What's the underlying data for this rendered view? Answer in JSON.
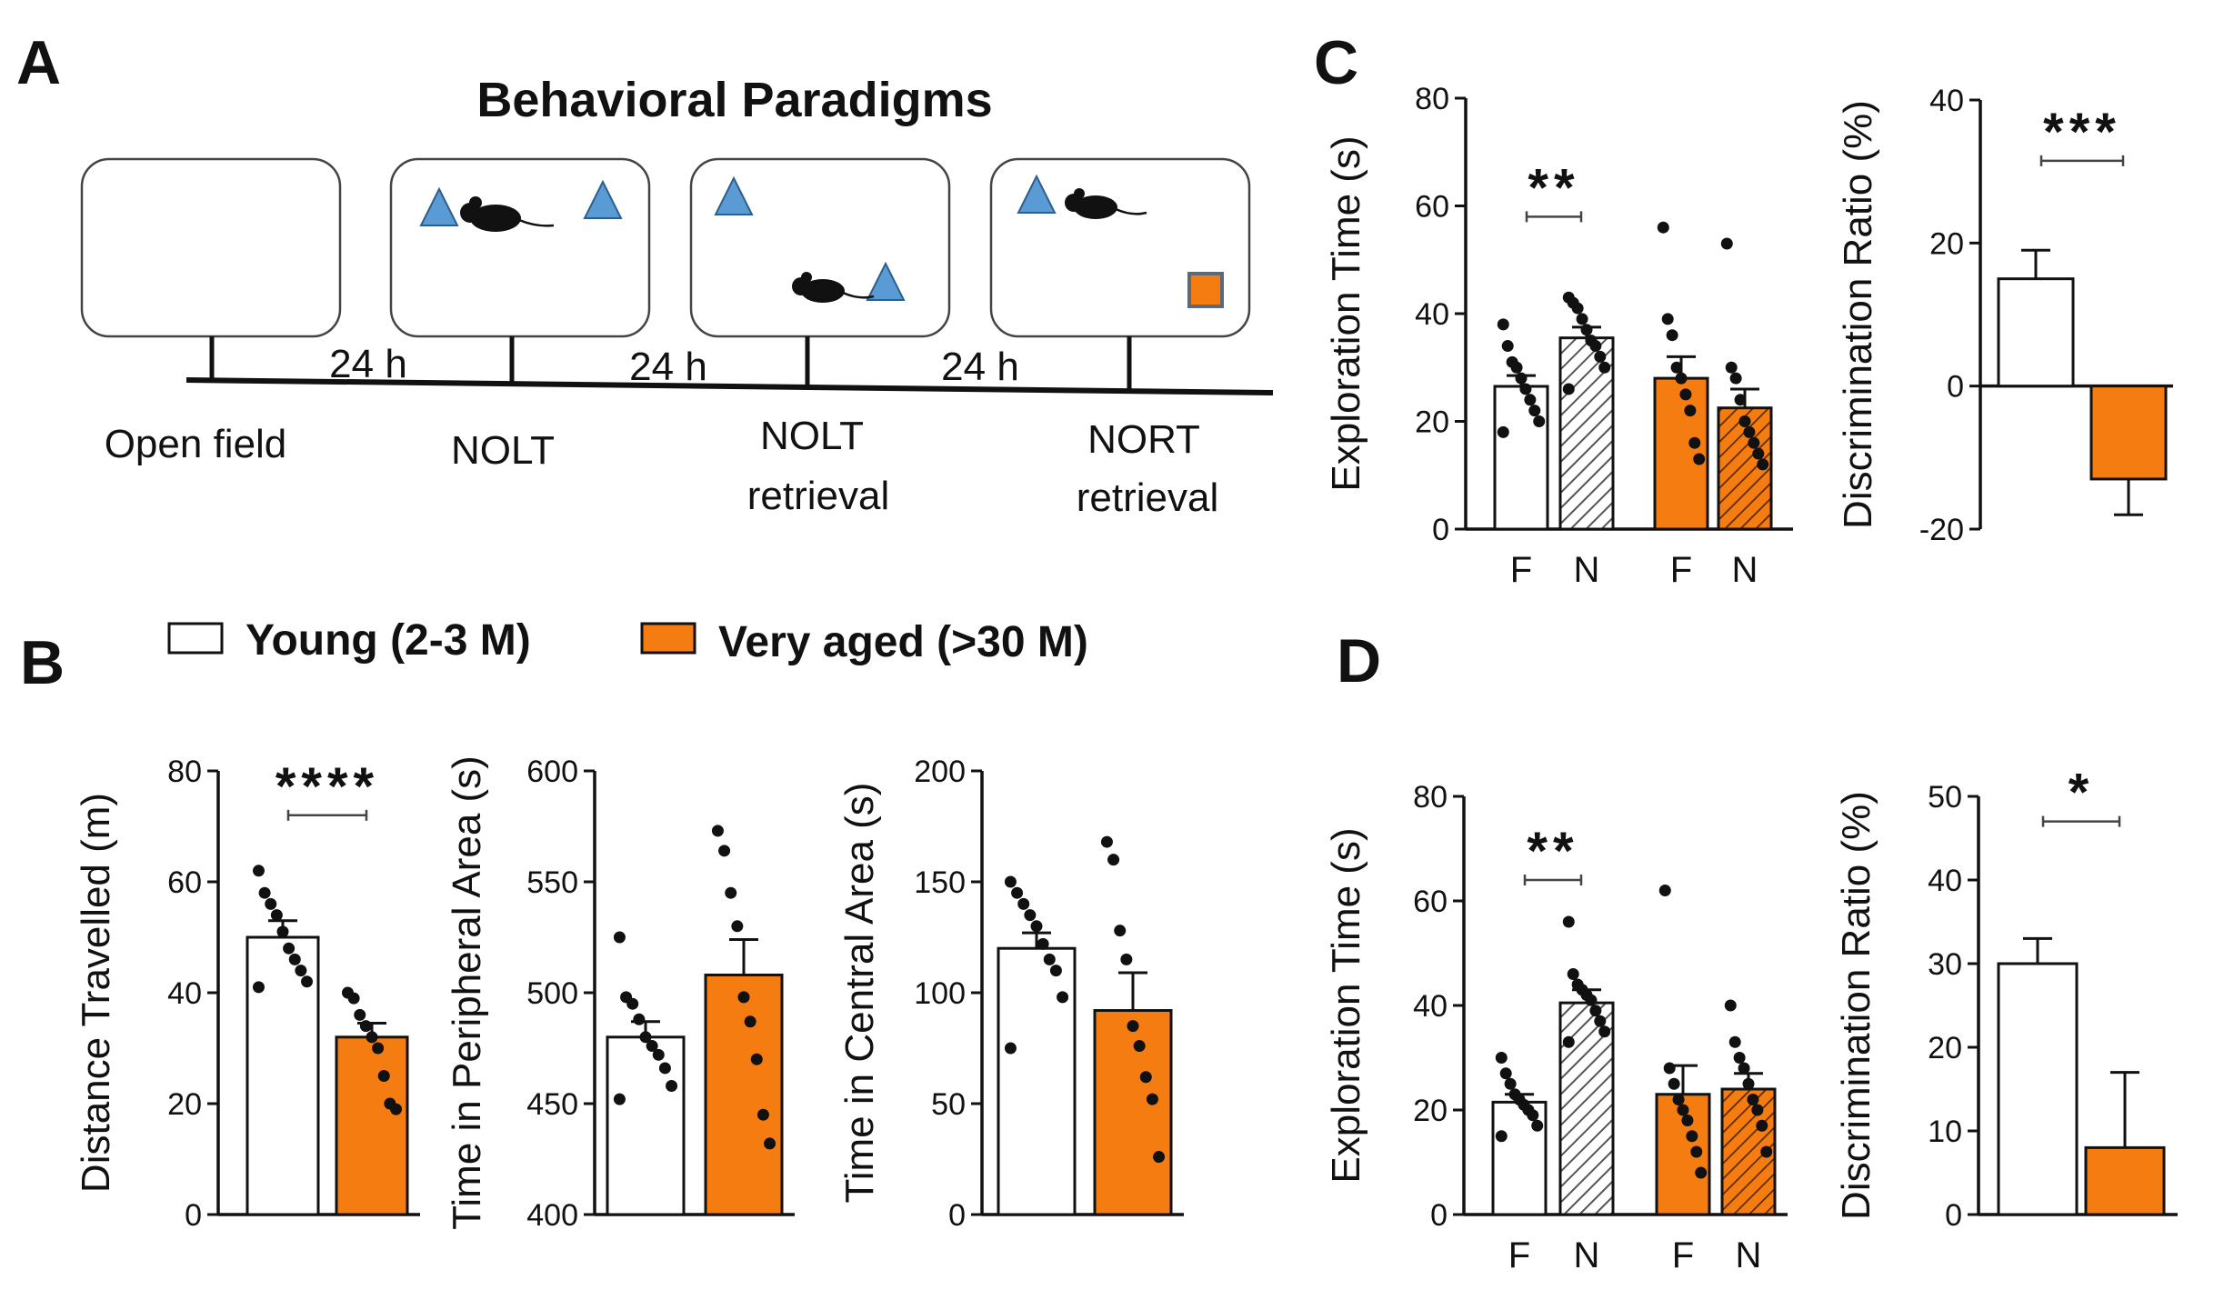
{
  "colors": {
    "young": "#ffffff",
    "aged": "#f47c10",
    "outline": "#111111",
    "object": "#5b9bd5",
    "novel": "#f47c10"
  },
  "panelA": {
    "letter": "A",
    "title": "Behavioral Paradigms",
    "stages": [
      "Open field",
      "NOLT",
      "NOLT",
      "NORT"
    ],
    "stage_sub": [
      "",
      "",
      "retrieval",
      "retrieval"
    ],
    "intervals": [
      "24 h",
      "24 h",
      "24 h"
    ]
  },
  "legend": {
    "young": "Young (2-3 M)",
    "aged": "Very aged (>30 M)"
  },
  "letters": {
    "B": "B",
    "C": "C",
    "D": "D"
  },
  "chart_data": [
    {
      "id": "B1",
      "type": "bar",
      "ylabel": "Distance Travelled (m)",
      "ylim": [
        0,
        80
      ],
      "yticks": [
        0,
        20,
        40,
        60,
        80
      ],
      "categories": [
        "Young (2-3 M)",
        "Very aged (>30 M)"
      ],
      "values": [
        50,
        32
      ],
      "errors": [
        3,
        2.5
      ],
      "points": [
        [
          62,
          58,
          56,
          54,
          51,
          48,
          46,
          44,
          42,
          41
        ],
        [
          40,
          39,
          36,
          34,
          32,
          30,
          25,
          20,
          19
        ]
      ],
      "significance": {
        "label": "****",
        "y": 72
      }
    },
    {
      "id": "B2",
      "type": "bar",
      "ylabel": "Time in Peripheral Area (s)",
      "ylim": [
        400,
        600
      ],
      "yticks": [
        400,
        450,
        500,
        550,
        600
      ],
      "categories": [
        "Young (2-3 M)",
        "Very aged (>30 M)"
      ],
      "values": [
        480,
        508
      ],
      "errors": [
        7,
        16
      ],
      "points": [
        [
          525,
          498,
          495,
          488,
          480,
          476,
          472,
          466,
          458,
          452
        ],
        [
          573,
          564,
          545,
          530,
          498,
          487,
          470,
          445,
          432
        ]
      ]
    },
    {
      "id": "B3",
      "type": "bar",
      "ylabel": "Time in Central Area (s)",
      "ylim": [
        0,
        200
      ],
      "yticks": [
        0,
        50,
        100,
        150,
        200
      ],
      "categories": [
        "Young (2-3 M)",
        "Very aged (>30 M)"
      ],
      "values": [
        120,
        92
      ],
      "errors": [
        7,
        17
      ],
      "points": [
        [
          150,
          145,
          140,
          135,
          130,
          122,
          115,
          110,
          98,
          75
        ],
        [
          168,
          160,
          128,
          115,
          85,
          76,
          62,
          52,
          26
        ]
      ]
    },
    {
      "id": "C1",
      "type": "bar",
      "ylabel": "Exploration Time (s)",
      "ylim": [
        0,
        80
      ],
      "yticks": [
        0,
        20,
        40,
        60,
        80
      ],
      "categories": [
        "F",
        "N",
        "F",
        "N"
      ],
      "series": [
        "Young (2-3 M)",
        "Young (2-3 M)",
        "Very aged (>30 M)",
        "Very aged (>30 M)"
      ],
      "values": [
        26.5,
        35.5,
        28,
        22.5
      ],
      "errors": [
        2,
        2,
        4,
        3.5
      ],
      "points": [
        [
          38,
          34,
          31,
          30,
          28,
          26,
          24,
          22,
          20,
          18
        ],
        [
          43,
          42,
          41,
          39,
          37,
          35,
          34,
          32,
          30,
          26
        ],
        [
          56,
          39,
          36,
          30,
          28,
          25,
          22,
          16,
          13
        ],
        [
          53,
          30,
          28,
          24,
          20,
          18,
          16,
          14,
          12
        ]
      ],
      "significance": {
        "label": "**",
        "y": 58
      }
    },
    {
      "id": "C2",
      "type": "bar",
      "ylabel": "Discrimination Ratio (%)",
      "ylim": [
        -20,
        40
      ],
      "yticks": [
        -20,
        0,
        20,
        40
      ],
      "categories": [
        "Young (2-3 M)",
        "Very aged (>30 M)"
      ],
      "values": [
        15,
        -13
      ],
      "errors": [
        4,
        5
      ],
      "significance": {
        "label": "***",
        "y": 31.5
      }
    },
    {
      "id": "D1",
      "type": "bar",
      "ylabel": "Exploration Time (s)",
      "ylim": [
        0,
        80
      ],
      "yticks": [
        0,
        20,
        40,
        60,
        80
      ],
      "categories": [
        "F",
        "N",
        "F",
        "N"
      ],
      "series": [
        "Young (2-3 M)",
        "Young (2-3 M)",
        "Very aged (>30 M)",
        "Very aged (>30 M)"
      ],
      "values": [
        21.5,
        40.5,
        23,
        24
      ],
      "errors": [
        1.5,
        2.5,
        5.5,
        3
      ],
      "points": [
        [
          30,
          27,
          25,
          23,
          22,
          21,
          20,
          19,
          17,
          15
        ],
        [
          56,
          46,
          44,
          43,
          42,
          41,
          39,
          37,
          35,
          33
        ],
        [
          62,
          28,
          25,
          22,
          20,
          18,
          15,
          12,
          8
        ],
        [
          40,
          33,
          30,
          28,
          25,
          22,
          20,
          17,
          12
        ]
      ],
      "significance": {
        "label": "**",
        "y": 64
      }
    },
    {
      "id": "D2",
      "type": "bar",
      "ylabel": "Discrimination Ratio (%)",
      "ylim": [
        0,
        50
      ],
      "yticks": [
        0,
        10,
        20,
        30,
        40,
        50
      ],
      "categories": [
        "Young (2-3 M)",
        "Very aged (>30 M)"
      ],
      "values": [
        30,
        8
      ],
      "errors": [
        3,
        9
      ],
      "significance": {
        "label": "*",
        "y": 47
      }
    }
  ]
}
